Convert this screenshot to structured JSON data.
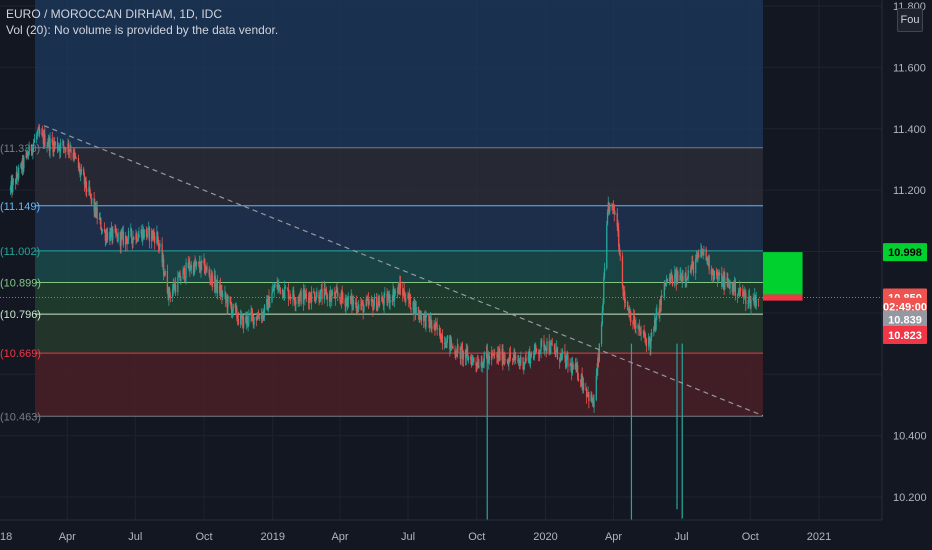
{
  "legend": {
    "title": "EURO / MOROCCAN DIRHAM, 1D, IDC",
    "volume_note": "Vol (20): No volume is provided by the data vendor."
  },
  "currency_button": "Fou",
  "colors": {
    "background": "#131722",
    "bull": "#26a69a",
    "bear": "#ef5350",
    "grid": "#2a2e39",
    "target_box": "#00d12f",
    "stop_box": "#f23645"
  },
  "chart_data": {
    "type": "candlestick",
    "symbol": "EURO / MOROCCAN DIRHAM",
    "interval": "1D",
    "source": "IDC",
    "y_ticks": [
      "11.800",
      "11.600",
      "11.400",
      "11.200",
      "10.400",
      "10.200"
    ],
    "x_ticks": [
      "18",
      "Apr",
      "Jul",
      "Oct",
      "2019",
      "Apr",
      "Jul",
      "Oct",
      "2020",
      "Apr",
      "Jul",
      "Oct",
      "2021"
    ],
    "ylim": [
      10.1,
      11.8
    ],
    "fib_levels": [
      {
        "value": 11.338,
        "label": "(11.338)",
        "color": "#787b86"
      },
      {
        "value": 11.149,
        "label": "(11.149)",
        "color": "#64b5f6"
      },
      {
        "value": 11.002,
        "label": "(11.002)",
        "color": "#26a69a"
      },
      {
        "value": 10.899,
        "label": "(10.899)",
        "color": "#81c784"
      },
      {
        "value": 10.796,
        "label": "(10.796)",
        "color": "#c8e6c9"
      },
      {
        "value": 10.669,
        "label": "(10.669)",
        "color": "#f23645"
      },
      {
        "value": 10.463,
        "label": "(10.463)",
        "color": "#787b86"
      }
    ],
    "price_badges": [
      {
        "value": 10.998,
        "label": "10.998",
        "bg": "#00d12f",
        "fg": "#000000"
      },
      {
        "value": 10.85,
        "label": "10.850",
        "bg": "#ef5350",
        "fg": "#ffffff"
      },
      {
        "value": 10.82,
        "label": "02:49:00",
        "bg": "#ef5350",
        "fg": "#ffffff"
      },
      {
        "value": 10.779,
        "label": "10.839",
        "bg": "#9598a1",
        "fg": "#ffffff"
      },
      {
        "value": 10.728,
        "label": "10.823",
        "bg": "#f23645",
        "fg": "#ffffff"
      }
    ],
    "trendline": {
      "from": [
        "2018-03-01",
        11.41
      ],
      "to": [
        "2020-10-18",
        10.465
      ],
      "style": "dashed"
    },
    "target_box": {
      "x_from": "2020-10-18",
      "x_to": "2020-12-10",
      "y_from": 10.86,
      "y_to": 10.998
    },
    "stop_box": {
      "x_from": "2020-10-18",
      "x_to": "2020-12-10",
      "y_from": 10.84,
      "y_to": 10.86
    },
    "anchors": [
      [
        "2018-01-15",
        11.2
      ],
      [
        "2018-02-20",
        11.38
      ],
      [
        "2018-03-10",
        11.35
      ],
      [
        "2018-04-05",
        11.34
      ],
      [
        "2018-05-01",
        11.18
      ],
      [
        "2018-05-20",
        11.06
      ],
      [
        "2018-06-15",
        11.04
      ],
      [
        "2018-07-10",
        11.06
      ],
      [
        "2018-07-30",
        11.05
      ],
      [
        "2018-08-15",
        10.86
      ],
      [
        "2018-09-10",
        10.95
      ],
      [
        "2018-10-01",
        10.95
      ],
      [
        "2018-10-25",
        10.86
      ],
      [
        "2018-11-20",
        10.77
      ],
      [
        "2018-12-20",
        10.8
      ],
      [
        "2019-01-05",
        10.89
      ],
      [
        "2019-02-01",
        10.85
      ],
      [
        "2019-03-01",
        10.86
      ],
      [
        "2019-04-01",
        10.85
      ],
      [
        "2019-05-01",
        10.82
      ],
      [
        "2019-06-01",
        10.84
      ],
      [
        "2019-06-20",
        10.88
      ],
      [
        "2019-07-15",
        10.8
      ],
      [
        "2019-08-10",
        10.74
      ],
      [
        "2019-09-01",
        10.68
      ],
      [
        "2019-10-01",
        10.64
      ],
      [
        "2019-11-01",
        10.66
      ],
      [
        "2019-12-01",
        10.64
      ],
      [
        "2020-01-01",
        10.7
      ],
      [
        "2020-01-20",
        10.66
      ],
      [
        "2020-02-15",
        10.6
      ],
      [
        "2020-03-05",
        10.5
      ],
      [
        "2020-03-15",
        10.72
      ],
      [
        "2020-03-25",
        11.15
      ],
      [
        "2020-04-05",
        11.12
      ],
      [
        "2020-04-15",
        10.85
      ],
      [
        "2020-05-01",
        10.75
      ],
      [
        "2020-05-20",
        10.7
      ],
      [
        "2020-06-10",
        10.9
      ],
      [
        "2020-07-10",
        10.93
      ],
      [
        "2020-07-30",
        11.0
      ],
      [
        "2020-08-15",
        10.92
      ],
      [
        "2020-09-10",
        10.88
      ],
      [
        "2020-10-01",
        10.84
      ],
      [
        "2020-10-12",
        10.85
      ]
    ],
    "volume_spikes": [
      {
        "date": "2019-10-15",
        "low": 10.09
      },
      {
        "date": "2020-04-25",
        "low": 10.12
      },
      {
        "date": "2020-06-25",
        "low": 10.16
      },
      {
        "date": "2020-07-02",
        "low": 10.13
      }
    ]
  }
}
